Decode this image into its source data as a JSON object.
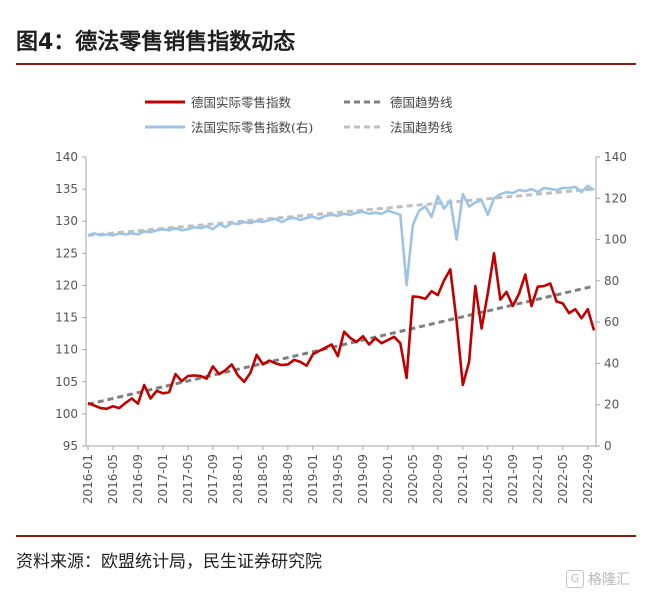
{
  "figure_title": "图4：德法零售销售指数动态",
  "source_note": "资料来源：欧盟统计局，民生证券研究院",
  "watermark": {
    "text": "格隆汇",
    "icon": "G"
  },
  "chart_data": {
    "type": "line",
    "title": "",
    "xlabel": "",
    "ylabel": "",
    "grid": false,
    "legend_position": "top",
    "x_tick_labels": [
      "2016-01",
      "2016-05",
      "2016-09",
      "2017-01",
      "2017-05",
      "2017-09",
      "2018-01",
      "2018-05",
      "2018-09",
      "2019-01",
      "2019-05",
      "2019-09",
      "2020-01",
      "2020-05",
      "2020-09",
      "2021-01",
      "2021-05",
      "2021-09",
      "2022-01",
      "2022-05",
      "2022-09"
    ],
    "y_left": {
      "lim": [
        95,
        140
      ],
      "ticks": [
        "95",
        "100",
        "105",
        "110",
        "115",
        "120",
        "125",
        "130",
        "135",
        "140"
      ]
    },
    "y_right": {
      "lim": [
        0,
        140
      ],
      "ticks": [
        "0",
        "20",
        "40",
        "60",
        "80",
        "100",
        "120",
        "140"
      ]
    },
    "months": [
      "2016-01",
      "2016-02",
      "2016-03",
      "2016-04",
      "2016-05",
      "2016-06",
      "2016-07",
      "2016-08",
      "2016-09",
      "2016-10",
      "2016-11",
      "2016-12",
      "2017-01",
      "2017-02",
      "2017-03",
      "2017-04",
      "2017-05",
      "2017-06",
      "2017-07",
      "2017-08",
      "2017-09",
      "2017-10",
      "2017-11",
      "2017-12",
      "2018-01",
      "2018-02",
      "2018-03",
      "2018-04",
      "2018-05",
      "2018-06",
      "2018-07",
      "2018-08",
      "2018-09",
      "2018-10",
      "2018-11",
      "2018-12",
      "2019-01",
      "2019-02",
      "2019-03",
      "2019-04",
      "2019-05",
      "2019-06",
      "2019-07",
      "2019-08",
      "2019-09",
      "2019-10",
      "2019-11",
      "2019-12",
      "2020-01",
      "2020-02",
      "2020-03",
      "2020-04",
      "2020-05",
      "2020-06",
      "2020-07",
      "2020-08",
      "2020-09",
      "2020-10",
      "2020-11",
      "2020-12",
      "2021-01",
      "2021-02",
      "2021-03",
      "2021-04",
      "2021-05",
      "2021-06",
      "2021-07",
      "2021-08",
      "2021-09",
      "2021-10",
      "2021-11",
      "2021-12",
      "2022-01",
      "2022-02",
      "2022-03",
      "2022-04",
      "2022-05",
      "2022-06",
      "2022-07",
      "2022-08",
      "2022-09",
      "2022-10"
    ],
    "series": [
      {
        "name": "德国实际零售指数",
        "axis": "left",
        "color": "#c00000",
        "style": "solid",
        "values": [
          101.7,
          101.3,
          100.9,
          100.8,
          101.2,
          100.9,
          101.7,
          102.4,
          101.6,
          104.5,
          102.4,
          103.6,
          103.2,
          103.4,
          106.2,
          105.1,
          105.9,
          106.0,
          105.9,
          105.5,
          107.4,
          106.2,
          106.8,
          107.7,
          106.0,
          105.0,
          106.4,
          109.2,
          107.7,
          108.3,
          107.9,
          107.6,
          107.7,
          108.4,
          108.1,
          107.5,
          109.3,
          109.8,
          110.3,
          110.8,
          109.0,
          112.8,
          111.8,
          111.2,
          112.1,
          110.8,
          111.8,
          111.0,
          111.5,
          112.0,
          111.0,
          105.6,
          118.3,
          118.2,
          117.9,
          119.1,
          118.5,
          120.8,
          122.5,
          114.4,
          104.5,
          108.1,
          119.9,
          113.3,
          118.8,
          125.0,
          117.8,
          119.0,
          116.8,
          118.7,
          121.7,
          116.8,
          119.8,
          119.9,
          120.3,
          117.5,
          117.2,
          115.7,
          116.3,
          114.9,
          116.3,
          113.0
        ]
      },
      {
        "name": "德国趋势线",
        "axis": "left",
        "color": "#7f7f7f",
        "style": "dashed",
        "values": [
          101.5,
          119.9
        ]
      },
      {
        "name": "法国实际零售指数(右)",
        "axis": "right",
        "color": "#9dc3e6",
        "style": "solid",
        "values": [
          102.0,
          103.0,
          102.0,
          102.5,
          102.0,
          103.0,
          102.5,
          103.0,
          102.5,
          104.0,
          103.5,
          104.5,
          105.0,
          104.5,
          105.5,
          104.5,
          105.0,
          106.0,
          105.5,
          106.5,
          105.0,
          107.5,
          106.0,
          108.0,
          107.5,
          108.5,
          108.0,
          109.0,
          108.5,
          109.5,
          110.0,
          108.5,
          110.0,
          110.5,
          109.5,
          110.5,
          111.0,
          110.0,
          111.5,
          112.0,
          111.5,
          112.5,
          112.0,
          113.0,
          113.5,
          112.5,
          113.0,
          112.5,
          114.0,
          113.0,
          112.0,
          78.0,
          107.0,
          114.0,
          116.0,
          111.0,
          121.0,
          115.0,
          119.0,
          100.0,
          122.0,
          116.0,
          118.0,
          119.0,
          112.0,
          120.0,
          122.0,
          123.0,
          122.5,
          124.0,
          123.5,
          124.5,
          123.0,
          125.0,
          124.5,
          124.0,
          125.0,
          125.0,
          125.5,
          123.0,
          126.0,
          124.0
        ]
      },
      {
        "name": "法国趋势线",
        "axis": "right",
        "color": "#bfbfbf",
        "style": "dashed",
        "values": [
          102.0,
          124.5
        ]
      }
    ]
  }
}
